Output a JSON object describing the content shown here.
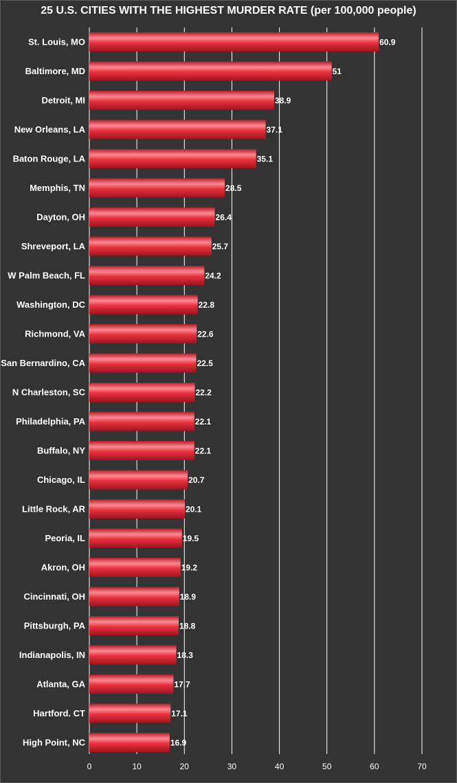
{
  "chart_data": {
    "type": "bar",
    "orientation": "horizontal",
    "title": "25 U.S. CITIES WITH THE HIGHEST MURDER RATE (per 100,000 people)",
    "categories": [
      "St. Louis, MO",
      "Baltimore, MD",
      "Detroit, MI",
      "New Orleans, LA",
      "Baton Rouge, LA",
      "Memphis, TN",
      "Dayton, OH",
      "Shreveport, LA",
      "W Palm Beach, FL",
      "Washington, DC",
      "Richmond, VA",
      "San Bernardino, CA",
      "N Charleston, SC",
      "Philadelphia, PA",
      "Buffalo, NY",
      "Chicago, IL",
      "Little Rock, AR",
      "Peoria, IL",
      "Akron, OH",
      "Cincinnati, OH",
      "Pittsburgh, PA",
      "Indianapolis, IN",
      "Atlanta, GA",
      "Hartford. CT",
      "High Point, NC"
    ],
    "values": [
      60.9,
      51,
      38.9,
      37.1,
      35.1,
      28.5,
      26.4,
      25.7,
      24.2,
      22.8,
      22.6,
      22.5,
      22.2,
      22.1,
      22.1,
      20.7,
      20.1,
      19.5,
      19.2,
      18.9,
      18.8,
      18.3,
      17.7,
      17.1,
      16.9
    ],
    "value_labels": [
      "60.9",
      "51",
      "38.9",
      "37.1",
      "35.1",
      "28.5",
      "26.4",
      "25.7",
      "24.2",
      "22.8",
      "22.6",
      "22.5",
      "22.2",
      "22.1",
      "22.1",
      "20.7",
      "20.1",
      "19.5",
      "19.2",
      "18.9",
      "18.8",
      "18.3",
      "17.7",
      "17.1",
      "16.9"
    ],
    "xlim": [
      0,
      70
    ],
    "xticks": [
      "0",
      "10",
      "20",
      "30",
      "40",
      "50",
      "60",
      "70"
    ],
    "grid": true,
    "colors": {
      "background": "#333333",
      "bar": "#e8323f",
      "bar_highlight": "#ff8a92",
      "bar_shadow": "#9e1420",
      "grid": "#ffffff",
      "text": "#ffffff"
    }
  }
}
